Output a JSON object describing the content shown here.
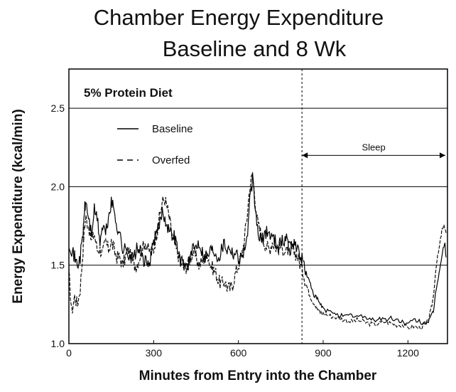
{
  "chart_data": {
    "type": "line",
    "title_lines": [
      "Chamber Energy Expenditure",
      "Baseline and 8 Wk"
    ],
    "inset_title": "5% Protein Diet",
    "xlabel": "Minutes from Entry into the Chamber",
    "ylabel": "Energy Expenditure (kcal/min)",
    "xlim": [
      0,
      1340
    ],
    "ylim": [
      1.0,
      2.75
    ],
    "xticks": [
      0,
      300,
      600,
      900,
      1200
    ],
    "yticks": [
      1.0,
      1.5,
      2.0,
      2.5
    ],
    "xtick_labels": [
      "0",
      "300",
      "600",
      "900",
      "1200"
    ],
    "ytick_labels": [
      "1.0",
      "1.5",
      "2.0",
      "2.5"
    ],
    "grid": "horizontal",
    "legend_position": "top-left",
    "legend": [
      "Baseline",
      "Overfed"
    ],
    "annotations": [
      {
        "type": "vertical-dashed-line",
        "x": 825
      },
      {
        "type": "double-arrow",
        "label": "Sleep",
        "x_start": 825,
        "x_end": 1340,
        "y": 2.2
      }
    ],
    "series": [
      {
        "name": "Baseline",
        "style": "solid",
        "x": [
          0,
          10,
          20,
          30,
          40,
          50,
          55,
          60,
          70,
          80,
          90,
          100,
          110,
          120,
          130,
          140,
          150,
          160,
          170,
          180,
          190,
          200,
          210,
          220,
          230,
          240,
          250,
          260,
          270,
          280,
          290,
          300,
          310,
          320,
          330,
          340,
          350,
          360,
          370,
          380,
          390,
          400,
          410,
          420,
          430,
          440,
          450,
          460,
          470,
          480,
          490,
          500,
          510,
          520,
          530,
          540,
          550,
          560,
          570,
          580,
          590,
          600,
          610,
          620,
          630,
          640,
          650,
          660,
          670,
          680,
          690,
          700,
          710,
          720,
          730,
          740,
          750,
          760,
          770,
          780,
          790,
          800,
          810,
          820,
          830,
          840,
          850,
          860,
          870,
          880,
          890,
          900,
          920,
          940,
          960,
          980,
          1000,
          1020,
          1040,
          1060,
          1080,
          1100,
          1120,
          1140,
          1160,
          1180,
          1200,
          1220,
          1240,
          1260,
          1270,
          1280,
          1290,
          1300,
          1310,
          1320,
          1330,
          1335
        ],
        "values": [
          1.65,
          1.6,
          1.55,
          1.5,
          1.55,
          1.7,
          1.85,
          1.9,
          1.8,
          1.7,
          1.85,
          1.8,
          1.65,
          1.75,
          1.7,
          1.8,
          1.9,
          1.85,
          1.75,
          1.7,
          1.6,
          1.6,
          1.58,
          1.55,
          1.55,
          1.6,
          1.6,
          1.55,
          1.52,
          1.5,
          1.55,
          1.65,
          1.7,
          1.75,
          1.85,
          1.8,
          1.75,
          1.7,
          1.7,
          1.65,
          1.55,
          1.52,
          1.5,
          1.5,
          1.55,
          1.6,
          1.62,
          1.65,
          1.6,
          1.55,
          1.55,
          1.6,
          1.6,
          1.58,
          1.55,
          1.6,
          1.65,
          1.6,
          1.62,
          1.58,
          1.58,
          1.55,
          1.55,
          1.6,
          1.65,
          1.9,
          2.05,
          1.85,
          1.7,
          1.65,
          1.68,
          1.72,
          1.7,
          1.68,
          1.66,
          1.62,
          1.65,
          1.65,
          1.68,
          1.6,
          1.62,
          1.65,
          1.6,
          1.55,
          1.52,
          1.45,
          1.4,
          1.35,
          1.3,
          1.28,
          1.25,
          1.22,
          1.2,
          1.2,
          1.18,
          1.17,
          1.18,
          1.17,
          1.18,
          1.16,
          1.15,
          1.16,
          1.15,
          1.16,
          1.15,
          1.14,
          1.12,
          1.15,
          1.14,
          1.13,
          1.14,
          1.16,
          1.2,
          1.35,
          1.45,
          1.55,
          1.65,
          1.55
        ]
      },
      {
        "name": "Overfed",
        "style": "dashed",
        "x": [
          0,
          10,
          20,
          30,
          40,
          50,
          55,
          60,
          70,
          80,
          90,
          100,
          110,
          120,
          130,
          140,
          150,
          160,
          170,
          180,
          190,
          200,
          210,
          220,
          230,
          240,
          250,
          260,
          270,
          280,
          290,
          300,
          310,
          320,
          330,
          340,
          350,
          360,
          370,
          380,
          390,
          400,
          410,
          420,
          430,
          440,
          450,
          460,
          470,
          480,
          490,
          500,
          510,
          520,
          530,
          540,
          550,
          560,
          570,
          580,
          590,
          600,
          610,
          620,
          630,
          640,
          650,
          660,
          670,
          680,
          690,
          700,
          710,
          720,
          730,
          740,
          750,
          760,
          770,
          780,
          790,
          800,
          810,
          820,
          830,
          840,
          850,
          860,
          870,
          880,
          890,
          900,
          920,
          940,
          960,
          980,
          1000,
          1020,
          1040,
          1060,
          1080,
          1100,
          1120,
          1140,
          1160,
          1180,
          1200,
          1220,
          1240,
          1260,
          1270,
          1280,
          1290,
          1300,
          1310,
          1320,
          1330,
          1335
        ],
        "values": [
          1.45,
          1.2,
          1.3,
          1.25,
          1.35,
          1.6,
          1.75,
          1.8,
          1.75,
          1.65,
          1.7,
          1.6,
          1.6,
          1.58,
          1.65,
          1.6,
          1.65,
          1.6,
          1.55,
          1.55,
          1.5,
          1.55,
          1.6,
          1.55,
          1.5,
          1.5,
          1.55,
          1.6,
          1.65,
          1.6,
          1.58,
          1.6,
          1.7,
          1.8,
          1.9,
          1.92,
          1.85,
          1.75,
          1.65,
          1.6,
          1.55,
          1.5,
          1.48,
          1.5,
          1.55,
          1.58,
          1.55,
          1.5,
          1.52,
          1.55,
          1.58,
          1.5,
          1.48,
          1.45,
          1.4,
          1.38,
          1.4,
          1.36,
          1.35,
          1.38,
          1.45,
          1.5,
          1.55,
          1.65,
          1.8,
          2.0,
          2.08,
          1.9,
          1.75,
          1.7,
          1.65,
          1.62,
          1.6,
          1.65,
          1.62,
          1.6,
          1.62,
          1.6,
          1.58,
          1.62,
          1.6,
          1.58,
          1.55,
          1.5,
          1.45,
          1.38,
          1.32,
          1.28,
          1.25,
          1.22,
          1.2,
          1.19,
          1.18,
          1.17,
          1.16,
          1.15,
          1.14,
          1.15,
          1.14,
          1.13,
          1.12,
          1.13,
          1.14,
          1.13,
          1.12,
          1.12,
          1.1,
          1.11,
          1.1,
          1.12,
          1.14,
          1.2,
          1.3,
          1.5,
          1.6,
          1.72,
          1.75,
          1.7
        ]
      }
    ]
  }
}
